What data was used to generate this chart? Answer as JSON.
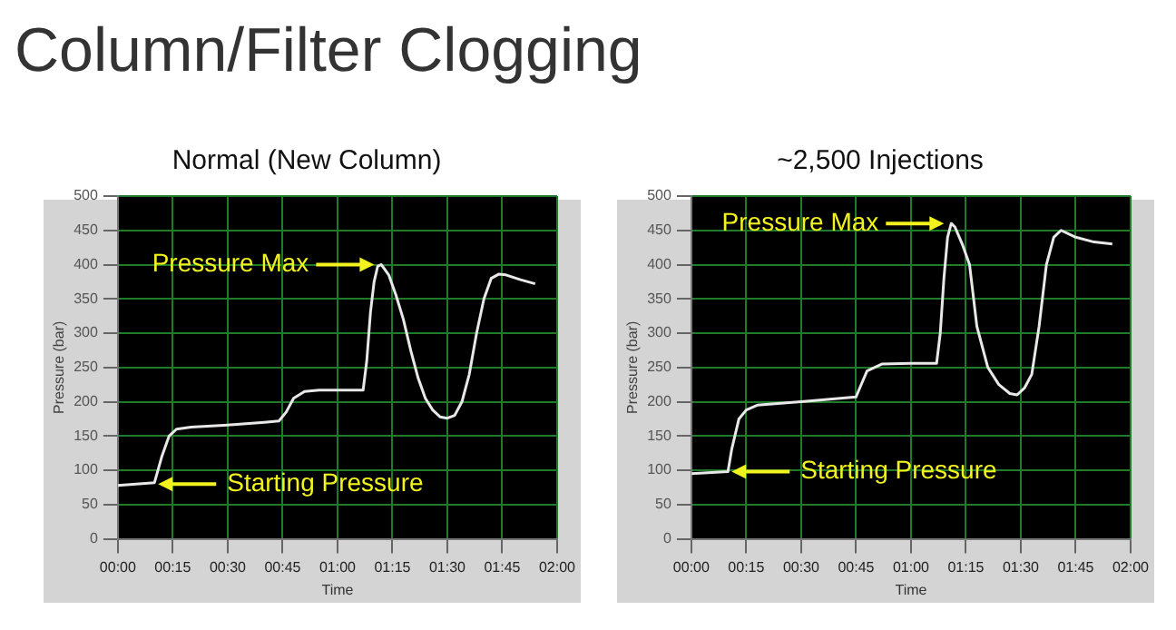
{
  "chart_data": [
    {
      "type": "other",
      "title": "Column/Filter Clogging"
    },
    {
      "type": "line",
      "title": "Normal (New Column)",
      "xlabel": "Time",
      "ylabel": "Pressure (bar)",
      "x": [
        0,
        10,
        12,
        14,
        16,
        20,
        30,
        40,
        44,
        46,
        48,
        51,
        55,
        67,
        68,
        69,
        70,
        71,
        72,
        74,
        76,
        78,
        80,
        82,
        84,
        86,
        88,
        90,
        92,
        94,
        96,
        98,
        100,
        102,
        104,
        106,
        110,
        114
      ],
      "series": [
        {
          "color": "#e8e8e8",
          "values": [
            78,
            82,
            120,
            150,
            160,
            163,
            166,
            170,
            172,
            185,
            205,
            215,
            217,
            217,
            260,
            330,
            375,
            398,
            400,
            385,
            355,
            320,
            275,
            235,
            205,
            188,
            178,
            176,
            180,
            200,
            240,
            300,
            350,
            380,
            386,
            385,
            378,
            372
          ]
        }
      ],
      "xlim": [
        0,
        120
      ],
      "ylim": [
        0,
        500
      ],
      "xticks": [
        {
          "value": 0,
          "label": "00:00"
        },
        {
          "value": 15,
          "label": "00:15"
        },
        {
          "value": 30,
          "label": "00:30"
        },
        {
          "value": 45,
          "label": "00:45"
        },
        {
          "value": 60,
          "label": "01:00"
        },
        {
          "value": 75,
          "label": "01:15"
        },
        {
          "value": 90,
          "label": "01:30"
        },
        {
          "value": 105,
          "label": "01:45"
        },
        {
          "value": 120,
          "label": "02:00"
        }
      ],
      "yticks": [
        0,
        50,
        100,
        150,
        200,
        250,
        300,
        350,
        400,
        450,
        500
      ],
      "grid": true,
      "marker": "none",
      "annotations": [
        {
          "text": "Pressure Max",
          "x": 72,
          "y": 400
        },
        {
          "text": "Starting Pressure",
          "x": 10,
          "y": 80
        }
      ]
    },
    {
      "type": "line",
      "title": "~2,500 Injections",
      "xlabel": "Time",
      "ylabel": "Pressure (bar)",
      "x": [
        0,
        10,
        11,
        13,
        15,
        18,
        30,
        45,
        46,
        48,
        52,
        60,
        67,
        68,
        69,
        70,
        71,
        72,
        74,
        76,
        78,
        81,
        84,
        87,
        89,
        91,
        93,
        95,
        97,
        99,
        101,
        105,
        110,
        115
      ],
      "series": [
        {
          "color": "#e8e8e8",
          "values": [
            95,
            98,
            130,
            175,
            188,
            195,
            200,
            207,
            220,
            245,
            255,
            256,
            256,
            300,
            380,
            440,
            460,
            455,
            430,
            400,
            310,
            250,
            225,
            212,
            210,
            220,
            240,
            310,
            400,
            440,
            450,
            440,
            433,
            430
          ]
        }
      ],
      "xlim": [
        0,
        120
      ],
      "ylim": [
        0,
        500
      ],
      "xticks": [
        {
          "value": 0,
          "label": "00:00"
        },
        {
          "value": 15,
          "label": "00:15"
        },
        {
          "value": 30,
          "label": "00:30"
        },
        {
          "value": 45,
          "label": "00:45"
        },
        {
          "value": 60,
          "label": "01:00"
        },
        {
          "value": 75,
          "label": "01:15"
        },
        {
          "value": 90,
          "label": "01:30"
        },
        {
          "value": 105,
          "label": "01:45"
        },
        {
          "value": 120,
          "label": "02:00"
        }
      ],
      "yticks": [
        0,
        50,
        100,
        150,
        200,
        250,
        300,
        350,
        400,
        450,
        500
      ],
      "grid": true,
      "marker": "none",
      "annotations": [
        {
          "text": "Pressure Max",
          "x": 71,
          "y": 460
        },
        {
          "text": "Starting Pressure",
          "x": 10,
          "y": 98
        }
      ]
    }
  ]
}
